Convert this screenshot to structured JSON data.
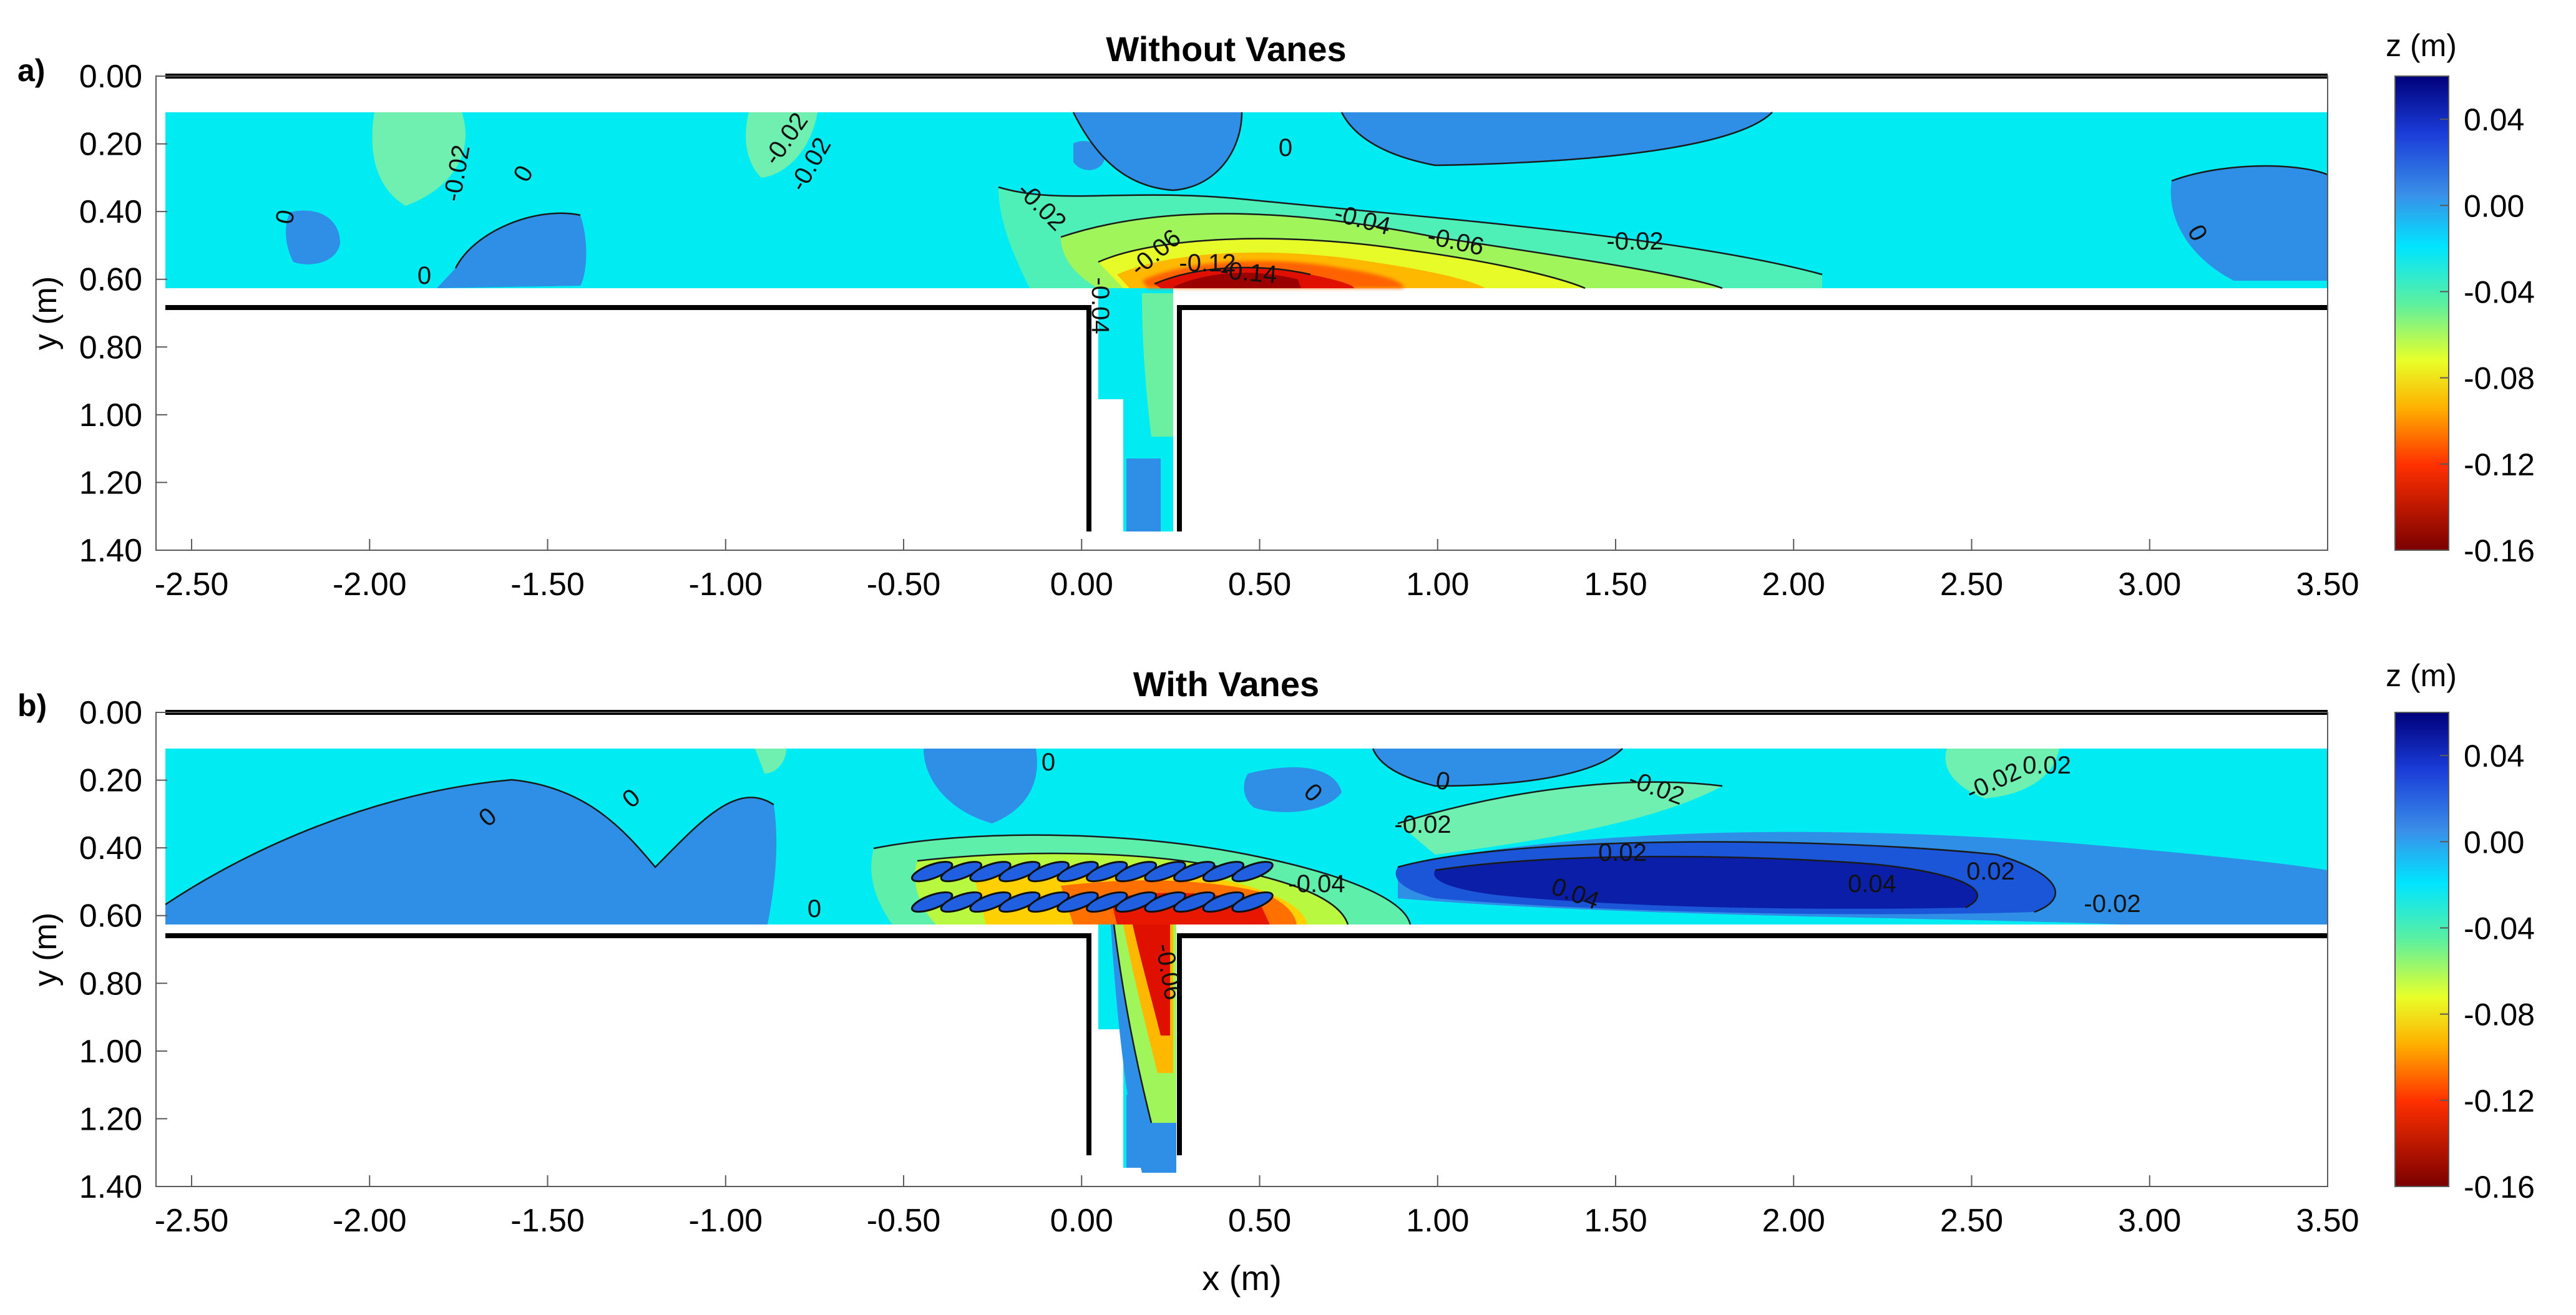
{
  "chart_data": [
    {
      "type": "heatmap",
      "panel_label": "a)",
      "title": "Without Vanes",
      "xlabel": "",
      "ylabel": "y (m)",
      "xlim": [
        -2.6,
        3.5
      ],
      "ylim": [
        0.0,
        1.4
      ],
      "y_reversed": true,
      "x_ticks": [
        "-2.50",
        "-2.00",
        "-1.50",
        "-1.00",
        "-0.50",
        "0.00",
        "0.50",
        "1.00",
        "1.50",
        "2.00",
        "2.50",
        "3.00",
        "3.50"
      ],
      "y_ticks": [
        "0.00",
        "0.20",
        "0.40",
        "0.60",
        "0.80",
        "1.00",
        "1.20",
        "1.40"
      ],
      "colorbar": {
        "label": "z (m)",
        "range": [
          -0.16,
          0.06
        ],
        "ticks": [
          "0.04",
          "0.00",
          "-0.04",
          "-0.08",
          "-0.12",
          "-0.16"
        ]
      },
      "contour_labels": [
        "-0.02",
        "-0.02",
        "-0.02",
        "-0.02",
        "-0.02",
        "-0.04",
        "-0.06",
        "-0.06",
        "-0.12",
        "-0.14",
        "-0.04",
        "0",
        "0",
        "0",
        "0",
        "0"
      ],
      "scour_zones": [
        {
          "x": [
            0.05,
            1.2
          ],
          "y": [
            0.45,
            0.66
          ],
          "z": -0.04
        },
        {
          "x": [
            0.15,
            0.95
          ],
          "y": [
            0.5,
            0.66
          ],
          "z": -0.08
        },
        {
          "x": [
            0.22,
            0.8
          ],
          "y": [
            0.55,
            0.66
          ],
          "z": -0.12
        },
        {
          "x": [
            0.3,
            0.72
          ],
          "y": [
            0.58,
            0.65
          ],
          "z": -0.15
        }
      ],
      "deposition_zones": [
        {
          "x": [
            2.9,
            3.5
          ],
          "y": [
            0.28,
            0.6
          ],
          "z": 0.01
        },
        {
          "x": [
            0.8,
            2.1
          ],
          "y": [
            0.12,
            0.25
          ],
          "z": 0.01
        },
        {
          "x": [
            0.15,
            0.45
          ],
          "y": [
            0.12,
            0.28
          ],
          "z": 0.01
        },
        {
          "x": [
            -1.45,
            -0.95
          ],
          "y": [
            0.4,
            0.62
          ],
          "z": 0.01
        },
        {
          "x": [
            0.1,
            0.2
          ],
          "y": [
            1.1,
            1.33
          ],
          "z": 0.01
        }
      ]
    },
    {
      "type": "heatmap",
      "panel_label": "b)",
      "title": "With Vanes",
      "xlabel": "x (m)",
      "ylabel": "y (m)",
      "xlim": [
        -2.6,
        3.5
      ],
      "ylim": [
        0.0,
        1.4
      ],
      "y_reversed": true,
      "x_ticks": [
        "-2.50",
        "-2.00",
        "-1.50",
        "-1.00",
        "-0.50",
        "0.00",
        "0.50",
        "1.00",
        "1.50",
        "2.00",
        "2.50",
        "3.00",
        "3.50"
      ],
      "y_ticks": [
        "0.00",
        "0.20",
        "0.40",
        "0.60",
        "0.80",
        "1.00",
        "1.20",
        "1.40"
      ],
      "colorbar": {
        "label": "z (m)",
        "range": [
          -0.16,
          0.06
        ],
        "ticks": [
          "0.04",
          "0.00",
          "-0.04",
          "-0.08",
          "-0.12",
          "-0.16"
        ]
      },
      "contour_labels": [
        "0",
        "0",
        "0",
        "0",
        "0",
        "0",
        "-0.02",
        "-0.02",
        "-0.02",
        "-0.02",
        "0.02",
        "0.02",
        "0.04",
        "0.04",
        "-0.04",
        "-0.06",
        "0.02"
      ],
      "scour_zones": [
        {
          "x": [
            -0.5,
            0.95
          ],
          "y": [
            0.45,
            0.66
          ],
          "z": -0.04
        },
        {
          "x": [
            0.0,
            0.8
          ],
          "y": [
            0.52,
            0.66
          ],
          "z": -0.08
        },
        {
          "x": [
            0.1,
            0.35
          ],
          "y": [
            0.55,
            1.0
          ],
          "z": -0.12
        }
      ],
      "deposition_zones": [
        {
          "x": [
            0.9,
            2.7
          ],
          "y": [
            0.42,
            0.62
          ],
          "z": 0.02
        },
        {
          "x": [
            1.3,
            2.4
          ],
          "y": [
            0.46,
            0.62
          ],
          "z": 0.04
        },
        {
          "x": [
            -2.6,
            -1.0
          ],
          "y": [
            0.2,
            0.6
          ],
          "z": 0.01
        },
        {
          "x": [
            0.1,
            0.2
          ],
          "y": [
            1.1,
            1.33
          ],
          "z": 0.01
        }
      ],
      "vanes": {
        "rows": [
          0.47,
          0.56
        ],
        "x_start": -0.42,
        "x_end": 0.48,
        "count_per_row": 12
      }
    }
  ]
}
